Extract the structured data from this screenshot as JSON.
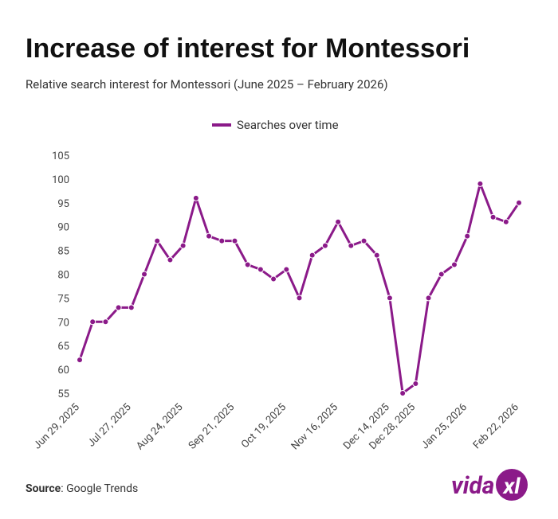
{
  "chart_data": {
    "type": "line",
    "title": "Increase of interest for Montessori",
    "subtitle": "Relative search interest for Montessori (June 2025 – February 2026)",
    "categories": [
      "Jun 29, 2025",
      null,
      null,
      null,
      "Jul 27, 2025",
      null,
      null,
      null,
      "Aug 24, 2025",
      null,
      null,
      null,
      "Sep 21, 2025",
      null,
      null,
      null,
      "Oct 19, 2025",
      null,
      null,
      null,
      "Nov 16, 2025",
      null,
      null,
      null,
      "Dec 14, 2025",
      null,
      "Dec 28, 2025",
      null,
      null,
      null,
      "Jan 25, 2026",
      null,
      null,
      null,
      "Feb 22, 2026"
    ],
    "series": [
      {
        "name": "Searches over time",
        "color": "#8b1a89",
        "values": [
          62,
          70,
          70,
          73,
          73,
          80,
          87,
          83,
          86,
          96,
          88,
          87,
          87,
          82,
          81,
          79,
          81,
          75,
          84,
          86,
          91,
          86,
          87,
          84,
          75,
          55,
          57,
          75,
          80,
          82,
          88,
          99,
          92,
          91,
          95
        ]
      }
    ],
    "ylim": [
      55,
      105
    ],
    "yticks": [
      55,
      60,
      65,
      70,
      75,
      80,
      85,
      90,
      95,
      100,
      105
    ],
    "grid": false,
    "legend": "top"
  },
  "source": {
    "label": "Source",
    "text": ": Google Trends"
  },
  "logo": {
    "left": "vida",
    "right": "xl"
  }
}
